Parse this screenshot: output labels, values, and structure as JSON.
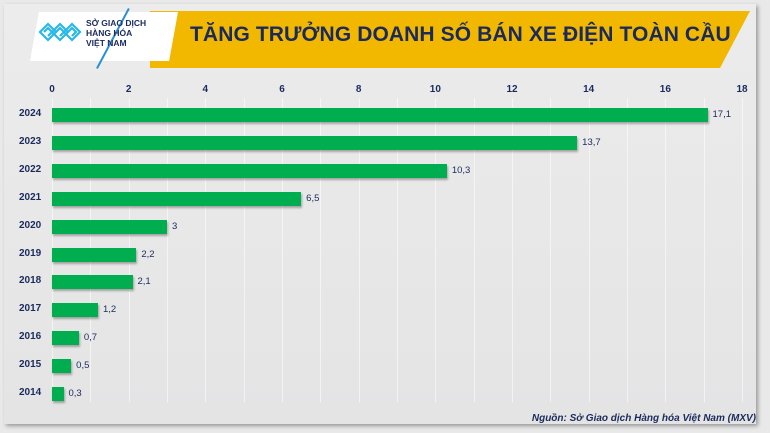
{
  "header": {
    "title": "TĂNG TRƯỞNG DOANH SỐ BÁN XE ĐIỆN TOÀN CẦU",
    "logo": {
      "line1": "SỞ GIAO DỊCH",
      "line2": "HÀNG HÓA",
      "line3": "VIỆT NAM",
      "icon": "mxv-logo-icon"
    }
  },
  "footer": {
    "source": "Nguồn: Sở Giao dịch Hàng hóa Việt Nam (MXV)"
  },
  "colors": {
    "banner": "#f2b800",
    "bar": "#00ae4f",
    "text": "#1b2a5c"
  },
  "chart_data": {
    "type": "bar",
    "orientation": "horizontal",
    "title": "TĂNG TRƯỞNG DOANH SỐ BÁN XE ĐIỆN TOÀN CẦU",
    "xlabel": "",
    "ylabel": "",
    "xlim": [
      0,
      18
    ],
    "xticks": [
      "0",
      "2",
      "4",
      "6",
      "8",
      "10",
      "12",
      "14",
      "16",
      "18"
    ],
    "grid": true,
    "legend": null,
    "categories": [
      "2024",
      "2023",
      "2022",
      "2021",
      "2020",
      "2019",
      "2018",
      "2017",
      "2016",
      "2015",
      "2014"
    ],
    "values": [
      17.1,
      13.7,
      10.3,
      6.5,
      3,
      2.2,
      2.1,
      1.2,
      0.7,
      0.5,
      0.3
    ],
    "value_labels": [
      "17,1",
      "13,7",
      "10,3",
      "6,5",
      "3",
      "2,2",
      "2,1",
      "1,2",
      "0,7",
      "0,5",
      "0,3"
    ],
    "source": "Nguồn: Sở Giao dịch Hàng hóa Việt Nam (MXV)"
  }
}
